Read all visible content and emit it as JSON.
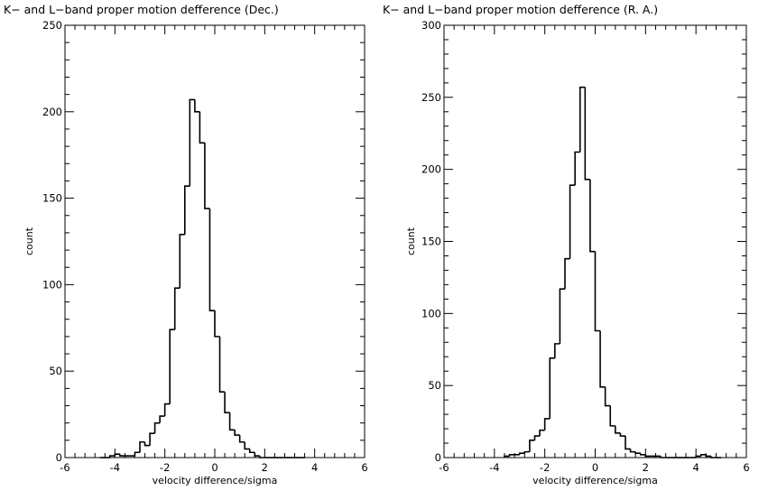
{
  "chart_data": [
    {
      "type": "histogram",
      "title": "K− and L−band proper motion defference (Dec.)",
      "xlabel": "velocity difference/sigma",
      "ylabel": "count",
      "xlim": [
        -6,
        6
      ],
      "ylim": [
        0,
        250
      ],
      "xticks": [
        "-6",
        "-4",
        "-2",
        "0",
        "2",
        "4",
        "6"
      ],
      "yticks": [
        "0",
        "50",
        "100",
        "150",
        "200",
        "250"
      ],
      "bin_edges": [
        -4.6,
        -4.4,
        -4.2,
        -4.0,
        -3.8,
        -3.6,
        -3.4,
        -3.2,
        -3.0,
        -2.8,
        -2.6,
        -2.4,
        -2.2,
        -2.0,
        -1.8,
        -1.6,
        -1.4,
        -1.2,
        -1.0,
        -0.8,
        -0.6,
        -0.4,
        -0.2,
        0.0,
        0.2,
        0.4,
        0.6,
        0.8,
        1.0,
        1.2,
        1.4,
        1.6,
        1.8,
        2.0,
        2.2,
        2.4,
        2.6,
        2.8,
        3.0,
        3.2,
        3.4,
        3.6
      ],
      "values": [
        0,
        0,
        1,
        2,
        1,
        1,
        1,
        3,
        9,
        7,
        14,
        20,
        24,
        31,
        74,
        98,
        129,
        157,
        207,
        200,
        182,
        144,
        85,
        70,
        38,
        26,
        16,
        13,
        9,
        5,
        3,
        1,
        0,
        0,
        0,
        0,
        0,
        0,
        0,
        0,
        0
      ]
    },
    {
      "type": "histogram",
      "title": "K− and L−band proper motion defference (R. A.)",
      "xlabel": "velocity difference/sigma",
      "ylabel": "count",
      "xlim": [
        -6,
        6
      ],
      "ylim": [
        0,
        300
      ],
      "xticks": [
        "-6",
        "-4",
        "-2",
        "0",
        "2",
        "4",
        "6"
      ],
      "yticks": [
        "0",
        "50",
        "100",
        "150",
        "200",
        "250",
        "300"
      ],
      "bin_edges": [
        -3.6,
        -3.4,
        -3.2,
        -3.0,
        -2.8,
        -2.6,
        -2.4,
        -2.2,
        -2.0,
        -1.8,
        -1.6,
        -1.4,
        -1.2,
        -1.0,
        -0.8,
        -0.6,
        -0.4,
        -0.2,
        0.0,
        0.2,
        0.4,
        0.6,
        0.8,
        1.0,
        1.2,
        1.4,
        1.6,
        1.8,
        2.0,
        2.2,
        2.4,
        2.6,
        2.8,
        3.0,
        3.2,
        3.4,
        3.6,
        3.8,
        4.0,
        4.2,
        4.4,
        4.6,
        4.8,
        5.0
      ],
      "values": [
        1,
        2,
        2,
        3,
        4,
        12,
        15,
        19,
        27,
        69,
        79,
        117,
        138,
        189,
        212,
        257,
        193,
        143,
        88,
        49,
        36,
        22,
        17,
        15,
        6,
        4,
        3,
        2,
        1,
        1,
        1,
        0,
        0,
        0,
        0,
        0,
        0,
        0,
        1,
        2,
        1,
        0,
        0
      ]
    }
  ]
}
